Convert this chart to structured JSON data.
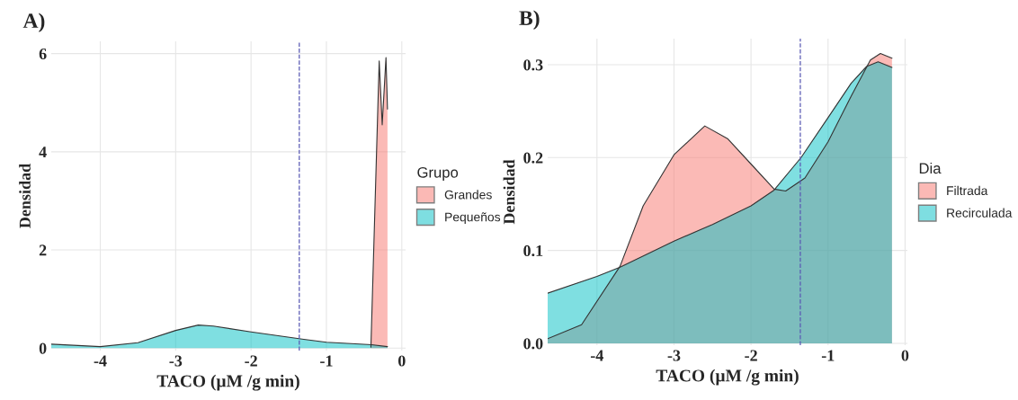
{
  "chart_data": [
    {
      "type": "area",
      "title": "A)",
      "xlabel": "TACO (µM /g min)",
      "ylabel": "Densidad",
      "legend_title": "Grupo",
      "legend": "right",
      "grid": true,
      "xlim": [
        -4.65,
        0.05
      ],
      "ylim": [
        -0.05,
        6.25
      ],
      "xticks": [
        -4,
        -3,
        -2,
        -1,
        0
      ],
      "yticks": [
        0,
        2,
        4,
        6
      ],
      "ref_lines": [
        {
          "axis": "x",
          "value": -1.36,
          "color": "#5a5ab4",
          "line_style": "dashed"
        }
      ],
      "series": [
        {
          "name": "Grandes",
          "color": "#f8766d",
          "x": [
            -0.41,
            -0.3,
            -0.26,
            -0.21,
            -0.19
          ],
          "values": [
            0.02,
            5.85,
            4.55,
            5.92,
            4.87
          ]
        },
        {
          "name": "Pequeños",
          "color": "#00bfc4",
          "x": [
            -4.65,
            -4.0,
            -3.5,
            -3.0,
            -2.7,
            -2.5,
            -2.0,
            -1.3,
            -1.0,
            -0.4,
            -0.19
          ],
          "values": [
            0.08,
            0.03,
            0.11,
            0.36,
            0.47,
            0.45,
            0.33,
            0.18,
            0.12,
            0.07,
            0.03
          ]
        }
      ]
    },
    {
      "type": "area",
      "title": "B)",
      "xlabel": "TACO (µM /g min)",
      "ylabel": "Densidad",
      "legend_title": "Dia",
      "legend": "right",
      "grid": true,
      "xlim": [
        -4.64,
        0.03
      ],
      "ylim": [
        -0.002,
        0.328
      ],
      "xticks": [
        -4,
        -3,
        -2,
        -1,
        0
      ],
      "yticks": [
        {
          "value": 0,
          "label": "0.0"
        },
        0.1,
        0.2,
        0.3
      ],
      "ref_lines": [
        {
          "axis": "x",
          "value": -1.36,
          "color": "#5a5ab4",
          "line_style": "dashed"
        }
      ],
      "series": [
        {
          "name": "Filtrada",
          "color": "#f8766d",
          "x": [
            -4.64,
            -4.2,
            -3.7,
            -3.4,
            -3.0,
            -2.6,
            -2.3,
            -2.0,
            -1.7,
            -1.55,
            -1.3,
            -1.0,
            -0.7,
            -0.45,
            -0.32,
            -0.17
          ],
          "values": [
            0.005,
            0.02,
            0.083,
            0.148,
            0.203,
            0.234,
            0.22,
            0.193,
            0.166,
            0.164,
            0.178,
            0.217,
            0.266,
            0.305,
            0.312,
            0.307
          ]
        },
        {
          "name": "Recirculada",
          "color": "#00bfc4",
          "x": [
            -4.64,
            -4.0,
            -3.7,
            -3.0,
            -2.5,
            -2.0,
            -1.7,
            -1.35,
            -1.0,
            -0.7,
            -0.5,
            -0.35,
            -0.17
          ],
          "values": [
            0.054,
            0.072,
            0.082,
            0.11,
            0.128,
            0.148,
            0.165,
            0.2,
            0.243,
            0.28,
            0.298,
            0.303,
            0.297
          ]
        }
      ]
    }
  ]
}
